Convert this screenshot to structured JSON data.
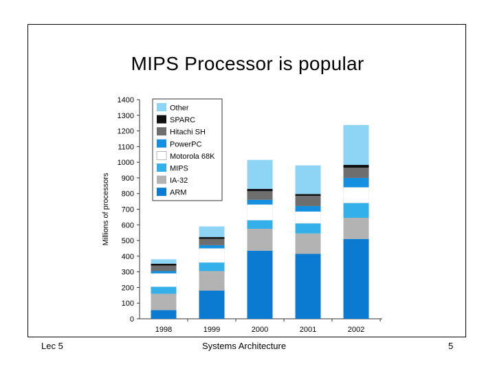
{
  "slide": {
    "title": "MIPS Processor is popular",
    "footer_left": "Lec 5",
    "footer_center": "Systems Architecture",
    "footer_right": "5"
  },
  "chart_data": {
    "type": "bar",
    "stacked": true,
    "title": "",
    "xlabel": "",
    "ylabel": "Millions of processors",
    "ylim": [
      0,
      1400
    ],
    "yticks": [
      0,
      100,
      200,
      300,
      400,
      500,
      600,
      700,
      800,
      900,
      1000,
      1100,
      1200,
      1300,
      1400
    ],
    "categories": [
      "1998",
      "1999",
      "2000",
      "2001",
      "2002"
    ],
    "legend_position": "top-left",
    "series": [
      {
        "name": "ARM",
        "color": "#0a7bd1",
        "values": [
          55,
          180,
          435,
          415,
          510
        ]
      },
      {
        "name": "IA-32",
        "color": "#b3b3b3",
        "values": [
          105,
          125,
          140,
          130,
          135
        ]
      },
      {
        "name": "MIPS",
        "color": "#33b0ea",
        "values": [
          45,
          55,
          55,
          65,
          95
        ]
      },
      {
        "name": "Motorola 68K",
        "color": "#ffffff",
        "values": [
          85,
          90,
          100,
          75,
          100
        ]
      },
      {
        "name": "PowerPC",
        "color": "#1590e0",
        "values": [
          15,
          20,
          30,
          35,
          60
        ]
      },
      {
        "name": "Hitachi SH",
        "color": "#6e6e6e",
        "values": [
          35,
          40,
          55,
          65,
          65
        ]
      },
      {
        "name": "SPARC",
        "color": "#111111",
        "values": [
          12,
          12,
          15,
          12,
          18
        ]
      },
      {
        "name": "Other",
        "color": "#8ed4f5",
        "values": [
          28,
          68,
          185,
          183,
          255
        ]
      }
    ],
    "legend_order": [
      "Other",
      "SPARC",
      "Hitachi SH",
      "PowerPC",
      "Motorola 68K",
      "MIPS",
      "IA-32",
      "ARM"
    ]
  }
}
